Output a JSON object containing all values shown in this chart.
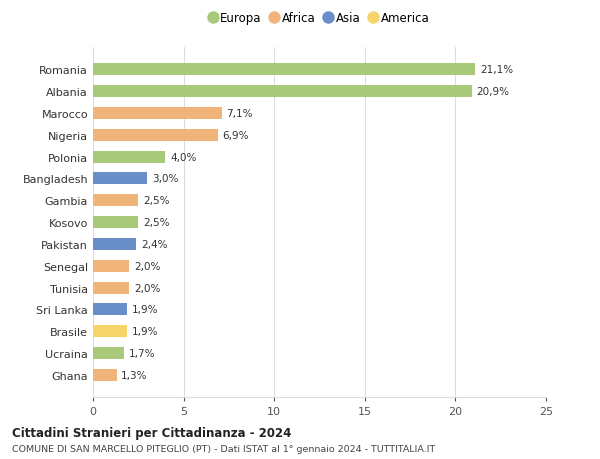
{
  "countries": [
    "Romania",
    "Albania",
    "Marocco",
    "Nigeria",
    "Polonia",
    "Bangladesh",
    "Gambia",
    "Kosovo",
    "Pakistan",
    "Senegal",
    "Tunisia",
    "Sri Lanka",
    "Brasile",
    "Ucraina",
    "Ghana"
  ],
  "values": [
    21.1,
    20.9,
    7.1,
    6.9,
    4.0,
    3.0,
    2.5,
    2.5,
    2.4,
    2.0,
    2.0,
    1.9,
    1.9,
    1.7,
    1.3
  ],
  "labels": [
    "21,1%",
    "20,9%",
    "7,1%",
    "6,9%",
    "4,0%",
    "3,0%",
    "2,5%",
    "2,5%",
    "2,4%",
    "2,0%",
    "2,0%",
    "1,9%",
    "1,9%",
    "1,7%",
    "1,3%"
  ],
  "continents": [
    "Europa",
    "Europa",
    "Africa",
    "Africa",
    "Europa",
    "Asia",
    "Africa",
    "Europa",
    "Asia",
    "Africa",
    "Africa",
    "Asia",
    "America",
    "Europa",
    "Africa"
  ],
  "continent_colors": {
    "Europa": "#a8c87a",
    "Africa": "#f0b47a",
    "Asia": "#6a8fc8",
    "America": "#f5d46a"
  },
  "legend_order": [
    "Europa",
    "Africa",
    "Asia",
    "America"
  ],
  "title": "Cittadini Stranieri per Cittadinanza - 2024",
  "subtitle": "COMUNE DI SAN MARCELLO PITEGLIO (PT) - Dati ISTAT al 1° gennaio 2024 - TUTTITALIA.IT",
  "xlim": [
    0,
    25
  ],
  "xticks": [
    0,
    5,
    10,
    15,
    20,
    25
  ],
  "bg_color": "#ffffff",
  "grid_color": "#dddddd",
  "bar_height": 0.55
}
